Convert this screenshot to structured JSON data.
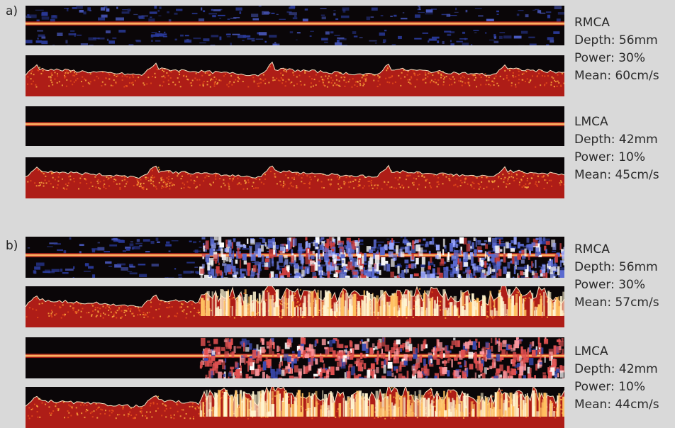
{
  "panels": [
    {
      "label": "a)",
      "groups": [
        {
          "vessel": "RMCA",
          "depth": "Depth: 56mm",
          "power": "Power: 30%",
          "mean": "Mean: 60cm/s"
        },
        {
          "vessel": "LMCA",
          "depth": "Depth: 42mm",
          "power": "Power: 10%",
          "mean": "Mean: 45cm/s"
        }
      ]
    },
    {
      "label": "b)",
      "groups": [
        {
          "vessel": "RMCA",
          "depth": "Depth: 56mm",
          "power": "Power: 30%",
          "mean": "Mean: 57cm/s"
        },
        {
          "vessel": "LMCA",
          "depth": "Depth: 42mm",
          "power": "Power: 10%",
          "mean": "Mean: 44cm/s"
        }
      ]
    }
  ],
  "colors": {
    "background": "#d9d9d9",
    "mmode_dark": "#0a0608",
    "mmode_blue": "#2a3a9a",
    "signal_orange": "#e8501a",
    "signal_red": "#c0201a",
    "signal_white": "#fff4d0"
  }
}
